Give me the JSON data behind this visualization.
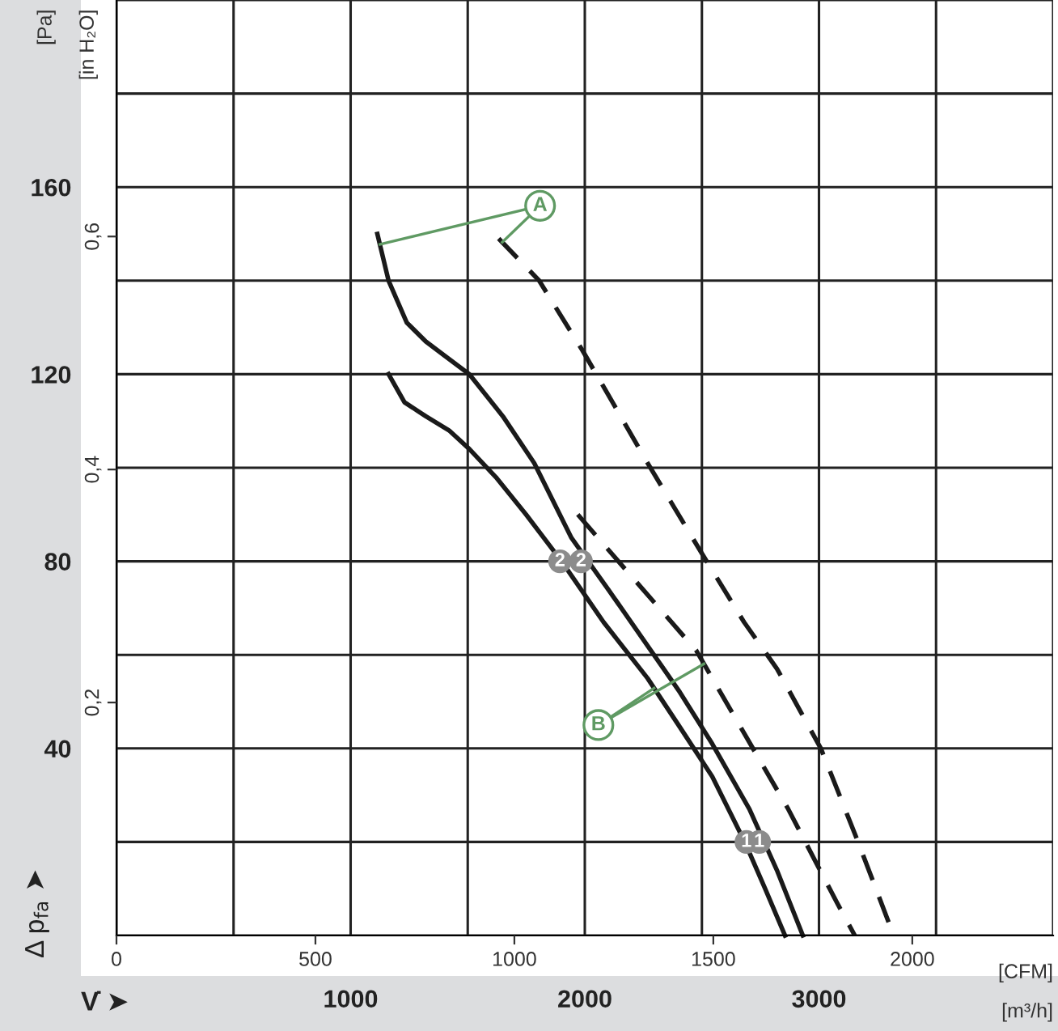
{
  "chart_data": {
    "type": "line",
    "xlabel": "[m³/h]",
    "x2label": "[CFM]",
    "ylabel": "[Pa]",
    "y2label": "[in H₂O]",
    "xlim": [
      0,
      4000
    ],
    "xticks": [
      {
        "value": 0,
        "label": null
      },
      {
        "value": 500,
        "label": null
      },
      1000,
      {
        "value": 1500,
        "label": null
      },
      2000,
      {
        "value": 2500,
        "label": null
      },
      3000,
      {
        "value": 3500,
        "label": null
      },
      {
        "value": 4000,
        "label": null
      }
    ],
    "ylim": [
      0,
      200
    ],
    "yticks": [
      {
        "value": 0,
        "label": null
      },
      {
        "value": 20,
        "label": null
      },
      40,
      {
        "value": 60,
        "label": null
      },
      80,
      {
        "value": 100,
        "label": null
      },
      120,
      {
        "value": 140,
        "label": null
      },
      160,
      {
        "value": 180,
        "label": null
      },
      {
        "value": 200,
        "label": null
      }
    ],
    "x2lim": [
      0,
      2354
    ],
    "x2ticks": [
      0,
      500,
      1000,
      1500,
      2000
    ],
    "y2lim": [
      0,
      0.803
    ],
    "y2ticks": [
      {
        "value": 0.2,
        "label": "0,2"
      },
      {
        "value": 0.4,
        "label": "0,4"
      },
      {
        "value": 0.6,
        "label": "0,6"
      }
    ],
    "grid": true,
    "marker": "none",
    "series": [
      {
        "color": "#1a1a1a",
        "line_style": "solid",
        "x": [
          1114,
          1162,
          1240,
          1321,
          1400,
          1507,
          1650,
          1784,
          1943,
          2100,
          2337,
          2406,
          2544,
          2703,
          2820,
          2931
        ],
        "values": [
          150,
          140,
          131,
          127,
          124,
          120,
          111,
          101,
          85,
          74,
          57,
          52,
          41,
          27,
          14,
          0
        ]
      },
      {
        "color": "#1a1a1a",
        "line_style": "solid",
        "x": [
          1162,
          1230,
          1321,
          1420,
          1507,
          1620,
          1749,
          1901,
          2080,
          2268,
          2400,
          2544,
          2683,
          2770,
          2855
        ],
        "values": [
          120,
          114,
          111,
          108,
          104,
          98,
          90,
          80,
          67,
          55,
          45,
          34,
          20,
          10,
          0
        ]
      },
      {
        "color": "#1a1a1a",
        "line_style": "dashed",
        "x": [
          1632,
          1805,
          1991,
          2130,
          2268,
          2496,
          2680,
          2821,
          3008,
          3167,
          3319
        ],
        "values": [
          149,
          140,
          125,
          113,
          101,
          82,
          67,
          57,
          40,
          20,
          0
        ]
      },
      {
        "color": "#1a1a1a",
        "line_style": "dashed",
        "x": [
          1970,
          2178,
          2475,
          2683,
          2869,
          3077,
          3153
        ],
        "values": [
          90,
          78,
          61,
          43,
          27,
          7,
          0
        ]
      }
    ],
    "annotations": [
      "Δ p$_{fa}$ ➤",
      "V̇ ➤",
      {
        "text": "A",
        "x": 1809,
        "y": 156
      },
      {
        "text": "B",
        "x": 2058,
        "y": 45
      },
      {
        "text": "2",
        "x": 1894,
        "y": 80
      },
      {
        "text": "2",
        "x": 1984,
        "y": 80
      },
      {
        "text": "1",
        "x": 2690,
        "y": 20
      },
      {
        "text": "1",
        "x": 2745,
        "y": 20
      }
    ]
  }
}
